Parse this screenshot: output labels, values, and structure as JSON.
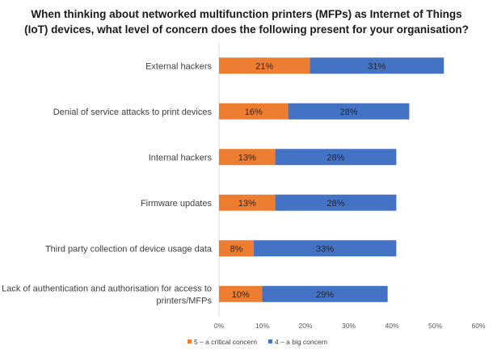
{
  "chart_data": {
    "type": "bar",
    "orientation": "horizontal",
    "stacked": true,
    "title": "When thinking about networked multifunction printers (MFPs) as Internet of Things (IoT) devices, what level of concern does the following present for your organisation?",
    "title_lines": [
      "When thinking about networked multifunction printers (MFPs) as Internet of Things",
      "(IoT) devices, what level of concern does the following present for your organisation?"
    ],
    "categories": [
      [
        "External hackers"
      ],
      [
        "Denial of service attacks to print devices"
      ],
      [
        "Internal hackers"
      ],
      [
        "Firmware updates"
      ],
      [
        "Third party collection of device usage data"
      ],
      [
        "Lack of authentication and authorisation for access to",
        "printers/MFPs"
      ]
    ],
    "series": [
      {
        "name": "5 – a critical concern",
        "color": "#ED7D31",
        "values": [
          21,
          16,
          13,
          13,
          8,
          10
        ],
        "labels": [
          "21%",
          "16%",
          "13%",
          "13%",
          "8%",
          "10%"
        ]
      },
      {
        "name": "4 – a big concern",
        "color": "#4472C4",
        "values": [
          31,
          28,
          28,
          28,
          33,
          29
        ],
        "labels": [
          "31%",
          "28%",
          "28%",
          "28%",
          "33%",
          "29%"
        ]
      }
    ],
    "xlim": [
      0,
      60
    ],
    "xticks": [
      "0%",
      "10%",
      "20%",
      "30%",
      "40%",
      "50%",
      "60%"
    ],
    "grid": false,
    "legend": "bottom"
  }
}
